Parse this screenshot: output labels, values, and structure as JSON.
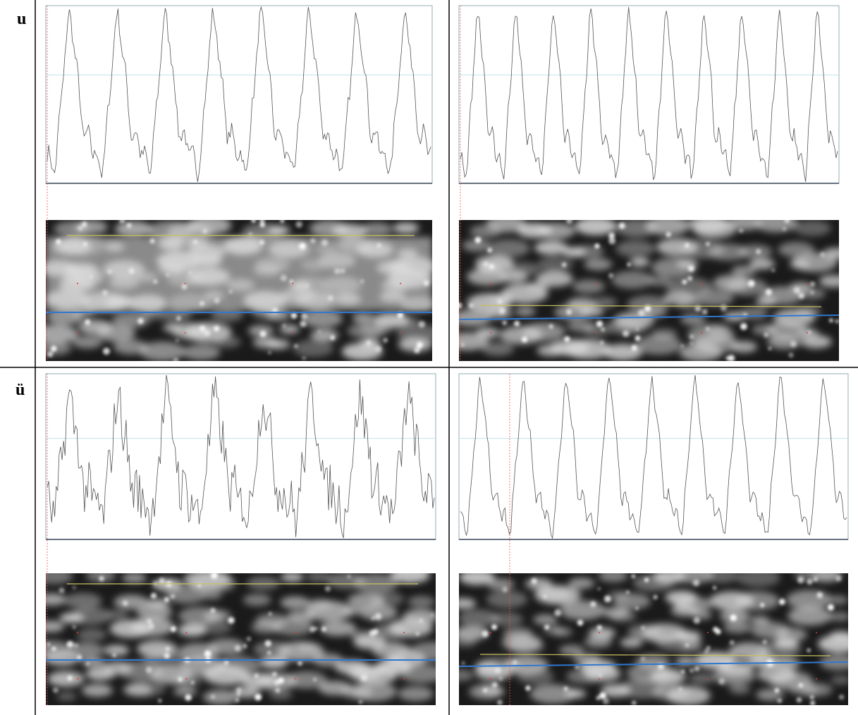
{
  "rows": [
    {
      "label": "u"
    },
    {
      "label": "ü"
    }
  ]
}
